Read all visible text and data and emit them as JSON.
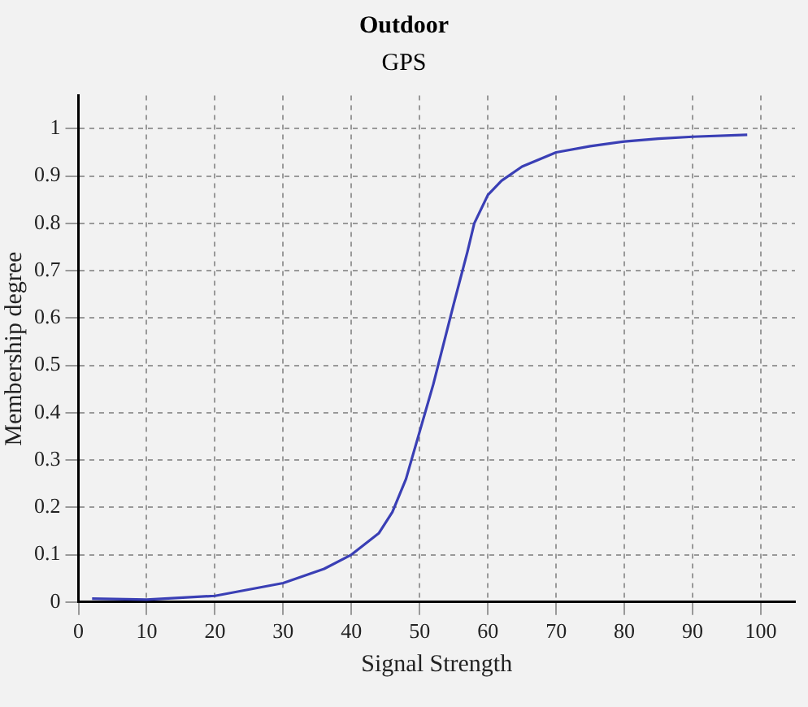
{
  "chart_data": {
    "type": "line",
    "title": "Outdoor",
    "subtitle": "GPS",
    "xlabel": "Signal Strength",
    "ylabel": "Membership degree",
    "x": [
      2,
      10,
      20,
      30,
      36,
      40,
      44,
      46,
      48,
      50,
      52,
      55,
      57,
      58,
      60,
      62,
      65,
      70,
      75,
      80,
      85,
      90,
      98
    ],
    "series": [
      {
        "color": "#3a3fb5",
        "values": [
          0.007,
          0.005,
          0.013,
          0.04,
          0.07,
          0.1,
          0.145,
          0.19,
          0.26,
          0.36,
          0.46,
          0.63,
          0.74,
          0.8,
          0.86,
          0.89,
          0.92,
          0.95,
          0.963,
          0.973,
          0.979,
          0.983,
          0.987
        ]
      }
    ],
    "xlim": [
      0,
      105
    ],
    "xticks": [
      0,
      10,
      20,
      30,
      40,
      50,
      60,
      70,
      80,
      90,
      100
    ],
    "ylim": [
      0,
      1.07
    ],
    "yticks": [
      0,
      0.1,
      0.2,
      0.3,
      0.4,
      0.5,
      0.6,
      0.7,
      0.8,
      0.9,
      1
    ],
    "grid": true,
    "legend": false,
    "marker": "none",
    "line_style": "solid"
  }
}
